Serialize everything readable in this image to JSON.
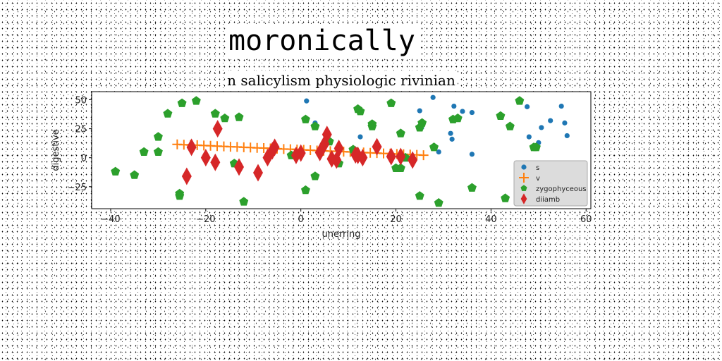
{
  "figure": {
    "title": "moronically"
  },
  "chart_data": {
    "type": "scatter",
    "title": "n salicylism physiologic rivinian",
    "xlabel": "unerring",
    "ylabel": "digestive",
    "xlim": [
      -44,
      61
    ],
    "ylim": [
      -44,
      57
    ],
    "xticks": [
      -40,
      -20,
      0,
      20,
      40,
      60
    ],
    "yticks": [
      -25,
      0,
      25,
      50
    ],
    "grid": false,
    "legend_position": "lower-right",
    "series": [
      {
        "name": "s",
        "marker": "circle",
        "color": "#1f77b4",
        "points": [
          [
            1.2,
            49
          ],
          [
            3,
            30
          ],
          [
            12.5,
            18
          ],
          [
            25,
            40.5
          ],
          [
            25.4,
            26
          ],
          [
            27.8,
            52
          ],
          [
            29,
            5
          ],
          [
            31.5,
            21
          ],
          [
            31.8,
            16
          ],
          [
            32.2,
            44.5
          ],
          [
            34,
            40
          ],
          [
            36,
            39
          ],
          [
            36,
            3
          ],
          [
            47.6,
            44
          ],
          [
            48,
            18
          ],
          [
            50,
            13
          ],
          [
            50.6,
            26
          ],
          [
            52.5,
            32
          ],
          [
            54.8,
            44.5
          ],
          [
            55.5,
            30
          ],
          [
            56,
            19
          ]
        ]
      },
      {
        "name": "v",
        "marker": "plus",
        "color": "#ff7f0e",
        "points": [
          [
            -26,
            11.5
          ],
          [
            -24.6,
            11.2
          ],
          [
            -23.2,
            11
          ],
          [
            -21.8,
            10.8
          ],
          [
            -20.4,
            10.5
          ],
          [
            -19,
            10.3
          ],
          [
            -17.6,
            10
          ],
          [
            -16.2,
            9.8
          ],
          [
            -14.8,
            9.5
          ],
          [
            -13.4,
            9.3
          ],
          [
            -12,
            9
          ],
          [
            -10.6,
            8.8
          ],
          [
            -9.2,
            8.5
          ],
          [
            -7.8,
            8.3
          ],
          [
            -6.4,
            8
          ],
          [
            -5,
            7.8
          ],
          [
            -3.6,
            7.5
          ],
          [
            -2.2,
            7.3
          ],
          [
            -0.8,
            7
          ],
          [
            0.6,
            6.8
          ],
          [
            2,
            6.5
          ],
          [
            3.4,
            6.2
          ],
          [
            4.8,
            6
          ],
          [
            6.2,
            5.7
          ],
          [
            7.6,
            5.5
          ],
          [
            9,
            5.2
          ],
          [
            10.4,
            5
          ],
          [
            11.8,
            4.7
          ],
          [
            13.2,
            4.5
          ],
          [
            14.6,
            4.2
          ],
          [
            16,
            4
          ],
          [
            17.4,
            3.7
          ],
          [
            18.8,
            3.5
          ],
          [
            20.2,
            3.2
          ],
          [
            21.6,
            3
          ],
          [
            23,
            2.7
          ],
          [
            24.4,
            2.5
          ],
          [
            25.8,
            2.2
          ]
        ]
      },
      {
        "name": "zygophyceous",
        "marker": "pentagon",
        "color": "#2ca02c",
        "points": [
          [
            -39,
            -12
          ],
          [
            -35,
            -15
          ],
          [
            -33,
            5
          ],
          [
            -30,
            18
          ],
          [
            -30,
            5
          ],
          [
            -28,
            38
          ],
          [
            -25.5,
            -31
          ],
          [
            -25.5,
            -33
          ],
          [
            -25,
            47
          ],
          [
            -22,
            49
          ],
          [
            -18,
            38
          ],
          [
            -16,
            34
          ],
          [
            -14,
            -5
          ],
          [
            -13,
            35
          ],
          [
            -12,
            -38
          ],
          [
            -2,
            2
          ],
          [
            1,
            -28
          ],
          [
            1,
            33
          ],
          [
            3,
            27
          ],
          [
            3,
            -16
          ],
          [
            6,
            14
          ],
          [
            8,
            -5
          ],
          [
            11,
            7
          ],
          [
            12,
            42
          ],
          [
            12.5,
            40
          ],
          [
            15,
            27
          ],
          [
            15,
            29
          ],
          [
            19,
            47
          ],
          [
            20,
            -9
          ],
          [
            21,
            -9
          ],
          [
            21,
            21
          ],
          [
            22,
            0
          ],
          [
            25,
            -33
          ],
          [
            25,
            26
          ],
          [
            25.5,
            30
          ],
          [
            28,
            9
          ],
          [
            29,
            -39
          ],
          [
            32,
            33
          ],
          [
            33,
            34
          ],
          [
            36,
            -26
          ],
          [
            42,
            36
          ],
          [
            43,
            -35
          ],
          [
            44,
            27
          ],
          [
            46,
            49
          ],
          [
            49,
            9
          ],
          [
            49.5,
            9
          ]
        ]
      },
      {
        "name": "diiamb",
        "marker": "thin_diamond",
        "color": "#d62728",
        "points": [
          [
            -24,
            -16
          ],
          [
            -23,
            9
          ],
          [
            -20,
            0
          ],
          [
            -18,
            -4
          ],
          [
            -17.5,
            25
          ],
          [
            -13,
            -8
          ],
          [
            -9,
            -13
          ],
          [
            -7,
            0
          ],
          [
            -6,
            6
          ],
          [
            -5.5,
            9
          ],
          [
            -1,
            2
          ],
          [
            0,
            4
          ],
          [
            4,
            4.5
          ],
          [
            5,
            12
          ],
          [
            5.5,
            20
          ],
          [
            6.5,
            -1
          ],
          [
            7.5,
            -2
          ],
          [
            8,
            8
          ],
          [
            11.5,
            2.5
          ],
          [
            12,
            2
          ],
          [
            13,
            0
          ],
          [
            16,
            9.5
          ],
          [
            19,
            1
          ],
          [
            21,
            1
          ],
          [
            23.5,
            -2
          ]
        ]
      }
    ]
  }
}
